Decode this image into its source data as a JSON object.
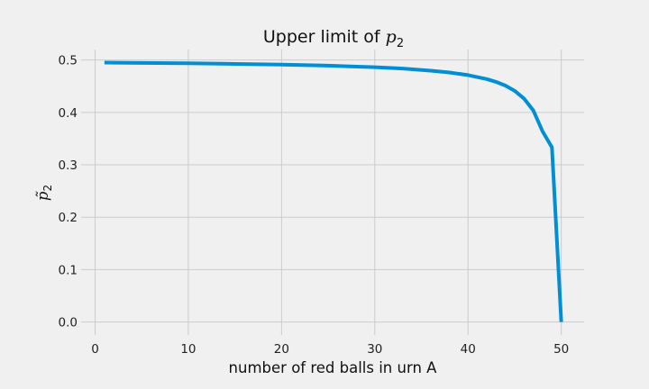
{
  "chart_data": {
    "type": "line",
    "title": {
      "text": "Upper limit of ",
      "math": "p",
      "sub": "2"
    },
    "xlabel": "number of red balls in urn A",
    "ylabel": {
      "math": "p̃",
      "sub": "2"
    },
    "xlim": [
      -1.5,
      52.45
    ],
    "ylim": [
      -0.0248,
      0.52
    ],
    "xticks": [
      0,
      10,
      20,
      30,
      40,
      50
    ],
    "yticks": [
      0.0,
      0.1,
      0.2,
      0.3,
      0.4,
      0.5
    ],
    "xtick_labels": [
      "0",
      "10",
      "20",
      "30",
      "40",
      "50"
    ],
    "ytick_labels": [
      "0.0",
      "0.1",
      "0.2",
      "0.3",
      "0.4",
      "0.5"
    ],
    "grid": true,
    "line_color": "#008fd5",
    "series": [
      {
        "x": [
          1,
          5,
          10,
          15,
          20,
          25,
          30,
          33,
          36,
          38,
          40,
          42,
          43,
          44,
          45,
          46,
          47,
          48,
          49,
          50
        ],
        "values": [
          0.495,
          0.4945,
          0.4937,
          0.4926,
          0.4912,
          0.4892,
          0.4862,
          0.4836,
          0.4797,
          0.4762,
          0.4712,
          0.4636,
          0.4583,
          0.4512,
          0.4412,
          0.4265,
          0.4038,
          0.3636,
          0.3333,
          0.0
        ]
      }
    ]
  }
}
